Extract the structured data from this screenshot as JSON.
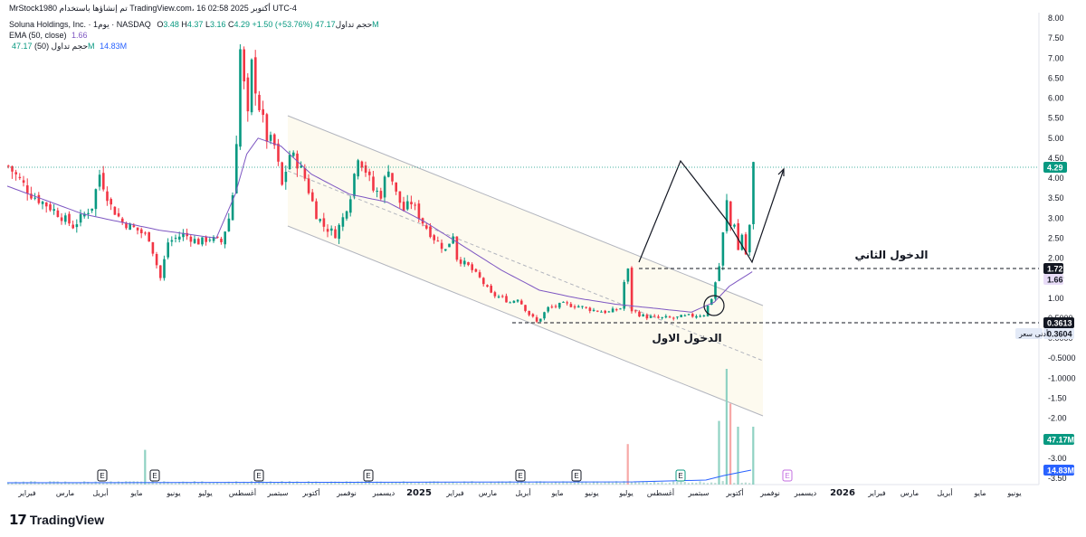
{
  "header": {
    "top_line": "MrStock1980 تم إنشاؤها باستخدام TradingView.com، 16 أكتوبر 2025 02:58 UTC-4"
  },
  "legend": {
    "symbol": "Soluna Holdings, Inc. · 1يوم · NASDAQ",
    "o_label": "O",
    "o_value": "3.48",
    "h_label": "H",
    "h_value": "4.37",
    "l_label": "L",
    "l_value": "3.16",
    "c_label": "C",
    "c_value": "4.29",
    "change": "+1.50 (+53.76%)",
    "volume_label": "حجم تداول",
    "volume_value": "47.17M",
    "ema_label": "EMA (50, close)",
    "ema_value": "1.66",
    "vol_ma_label": "حجم تداول (50)",
    "vol_ma_value1": "47.17M",
    "vol_ma_value2": "14.83M"
  },
  "annotations": {
    "first_entry": "الدخول الاول",
    "second_entry": "الدخول الثاني",
    "atl_label": "أدنى سعر"
  },
  "price_tags": {
    "last": "4.29",
    "level_172": "1.72",
    "ema": "1.66",
    "level_03613": "0.3613",
    "atl": "0.3604",
    "vol": "47.17M",
    "vol_ma": "14.83M"
  },
  "brand": {
    "name": "TradingView"
  },
  "colors": {
    "up": "#089981",
    "down": "#f23645",
    "ema": "#7e57c2",
    "channel_fill": "#fdfaef",
    "last_tag": "#089981",
    "ema_tag": "#2962ff"
  },
  "chart_data": {
    "type": "candlestick",
    "title": "",
    "y_ticks": [
      "8.00",
      "7.50",
      "7.00",
      "6.50",
      "6.00",
      "5.50",
      "5.00",
      "4.50",
      "4.00",
      "3.50",
      "3.00",
      "2.50",
      "2.00",
      "1.50",
      "1.00",
      "0.5000",
      "0.0000",
      "-0.5000",
      "-1.0000",
      "-1.50",
      "-2.00",
      "-2.50",
      "-3.00",
      "-3.50"
    ],
    "x_ticks": [
      "فبراير",
      "مارس",
      "أبريل",
      "مايو",
      "يونيو",
      "يوليو",
      "أغسطس",
      "سبتمبر",
      "أكتوبر",
      "نوفمبر",
      "ديسمبر",
      "2025",
      "فبراير",
      "مارس",
      "أبريل",
      "مايو",
      "يونيو",
      "يوليو",
      "أغسطس",
      "سبتمبر",
      "أكتوبر",
      "نوفمبر",
      "ديسمبر",
      "2026",
      "فبراير",
      "مارس",
      "أبريل",
      "مايو",
      "يونيو"
    ],
    "ylim": [
      -3.5,
      8.0
    ],
    "price_path": [
      [
        0,
        4.3
      ],
      [
        6,
        3.6
      ],
      [
        12,
        3.2
      ],
      [
        17,
        2.8
      ],
      [
        22,
        3.3
      ],
      [
        24,
        4.1
      ],
      [
        27,
        3.3
      ],
      [
        30,
        2.9
      ],
      [
        34,
        2.7
      ],
      [
        37,
        2.5
      ],
      [
        40,
        1.5
      ],
      [
        42,
        2.4
      ],
      [
        46,
        2.6
      ],
      [
        50,
        2.4
      ],
      [
        53,
        2.5
      ],
      [
        56,
        2.4
      ],
      [
        58,
        3.0
      ],
      [
        59,
        3.6
      ],
      [
        60,
        5.0
      ],
      [
        61,
        7.2
      ],
      [
        62,
        6.3
      ],
      [
        63,
        5.5
      ],
      [
        64,
        6.8
      ],
      [
        66,
        5.8
      ],
      [
        68,
        5.0
      ],
      [
        70,
        4.8
      ],
      [
        72,
        3.8
      ],
      [
        74,
        4.6
      ],
      [
        76,
        4.4
      ],
      [
        78,
        4.0
      ],
      [
        81,
        3.1
      ],
      [
        83,
        2.8
      ],
      [
        86,
        2.6
      ],
      [
        88,
        3.0
      ],
      [
        90,
        3.6
      ],
      [
        92,
        4.6
      ],
      [
        94,
        4.2
      ],
      [
        96,
        3.7
      ],
      [
        98,
        3.6
      ],
      [
        100,
        4.3
      ],
      [
        102,
        3.6
      ],
      [
        104,
        3.2
      ],
      [
        106,
        3.4
      ],
      [
        109,
        2.9
      ],
      [
        112,
        2.5
      ],
      [
        115,
        2.2
      ],
      [
        117,
        2.6
      ],
      [
        118,
        2.0
      ],
      [
        121,
        1.8
      ],
      [
        124,
        1.5
      ],
      [
        127,
        1.1
      ],
      [
        130,
        1.0
      ],
      [
        132,
        0.9
      ],
      [
        134,
        1.0
      ],
      [
        137,
        0.6
      ],
      [
        139,
        0.4
      ],
      [
        142,
        0.75
      ],
      [
        146,
        0.85
      ],
      [
        150,
        0.8
      ],
      [
        154,
        0.7
      ],
      [
        158,
        0.65
      ],
      [
        161,
        0.75
      ],
      [
        162,
        1.4
      ],
      [
        163,
        1.7
      ],
      [
        164,
        0.7
      ],
      [
        167,
        0.55
      ],
      [
        171,
        0.5
      ],
      [
        175,
        0.5
      ],
      [
        179,
        0.55
      ],
      [
        183,
        0.6
      ],
      [
        185,
        1.0
      ],
      [
        187,
        1.8
      ],
      [
        188,
        2.6
      ],
      [
        189,
        3.4
      ],
      [
        190,
        2.8
      ],
      [
        191,
        2.9
      ],
      [
        192,
        2.2
      ],
      [
        193,
        2.6
      ],
      [
        194,
        2.1
      ],
      [
        195,
        2.8
      ],
      [
        196,
        4.29
      ]
    ],
    "ema_path": [
      [
        0,
        3.8
      ],
      [
        20,
        3.1
      ],
      [
        40,
        2.7
      ],
      [
        55,
        2.5
      ],
      [
        60,
        3.6
      ],
      [
        63,
        4.6
      ],
      [
        66,
        5.0
      ],
      [
        72,
        4.8
      ],
      [
        80,
        4.1
      ],
      [
        90,
        3.6
      ],
      [
        100,
        3.4
      ],
      [
        110,
        2.9
      ],
      [
        120,
        2.3
      ],
      [
        130,
        1.7
      ],
      [
        140,
        1.2
      ],
      [
        150,
        1.0
      ],
      [
        160,
        0.85
      ],
      [
        170,
        0.75
      ],
      [
        180,
        0.65
      ],
      [
        186,
        0.9
      ],
      [
        190,
        1.3
      ],
      [
        196,
        1.66
      ]
    ],
    "volume_spikes": [
      [
        36,
        0.3
      ],
      [
        163,
        0.35
      ],
      [
        187,
        0.55
      ],
      [
        189,
        1.0
      ],
      [
        190,
        0.7
      ],
      [
        192,
        0.5
      ],
      [
        196,
        0.5
      ]
    ],
    "earnings_markers": [
      26,
      38,
      66,
      93,
      133,
      147,
      174,
      201
    ]
  }
}
